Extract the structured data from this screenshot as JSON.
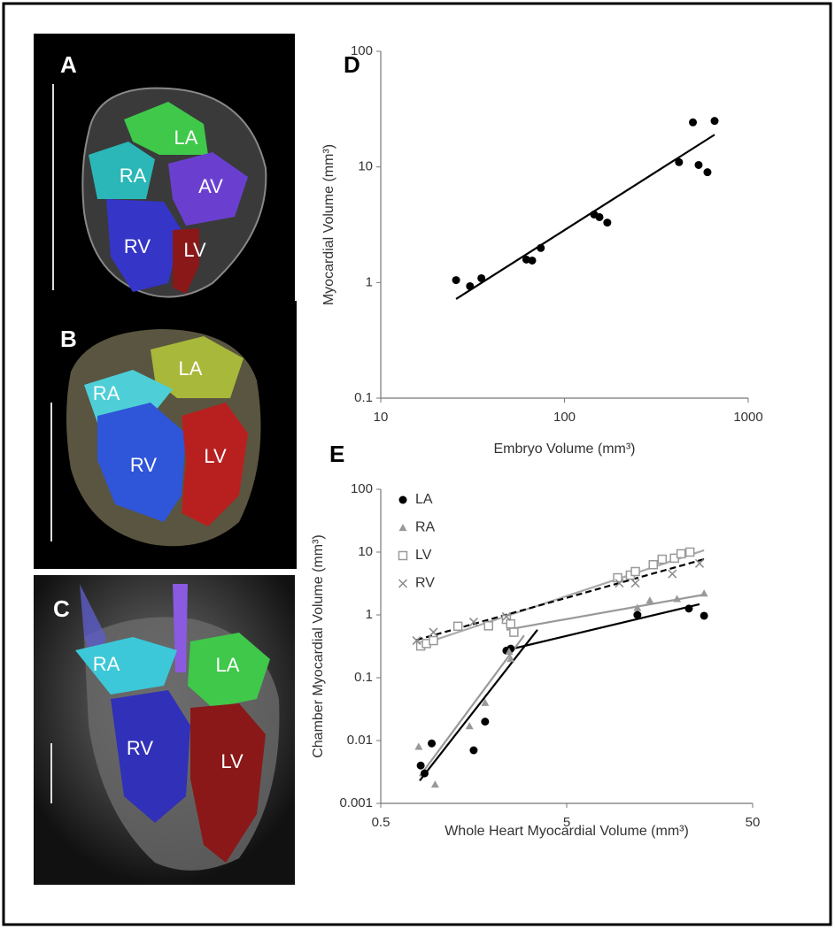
{
  "images": [
    {
      "panel": "A",
      "labels": [
        "LA",
        "RA",
        "AV",
        "RV",
        "LV"
      ]
    },
    {
      "panel": "B",
      "labels": [
        "LA",
        "RA",
        "RV",
        "LV"
      ]
    },
    {
      "panel": "C",
      "labels": [
        "RA",
        "LA",
        "RV",
        "LV"
      ]
    }
  ],
  "chart_data": [
    {
      "type": "scatter",
      "panel": "D",
      "x_label": "Embryo Volume (mm³)",
      "y_label": "Myocardial Volume (mm³)",
      "log_x": true,
      "log_y": true,
      "xlim": [
        10,
        1000
      ],
      "xticks": [
        10,
        100,
        1000
      ],
      "ylim": [
        0.1,
        100
      ],
      "yticks": [
        0.1,
        1,
        10,
        100
      ],
      "series": [
        {
          "color": "#000000",
          "marker": "circle",
          "x": [
            25.7,
            30.6,
            35.3,
            62,
            66.7,
            74.3,
            145,
            155,
            171,
            420,
            537,
            600,
            500,
            656
          ],
          "values": [
            1.05,
            0.93,
            1.09,
            1.58,
            1.55,
            1.99,
            3.88,
            3.68,
            3.3,
            11,
            10.4,
            9,
            24.3,
            25
          ]
        }
      ],
      "trendlines": [
        {
          "color": "#000000",
          "dash": false,
          "x": [
            25.7,
            656
          ],
          "y": [
            0.72,
            19
          ]
        }
      ]
    },
    {
      "type": "scatter",
      "panel": "E",
      "x_label": "Whole Heart Myocardial Volume (mm³)",
      "y_label": "Chamber Myocardial Volume (mm³)",
      "log_x": true,
      "log_y": true,
      "legend": "upper left",
      "xlim": [
        0.5,
        50
      ],
      "xticks": [
        0.5,
        5,
        50
      ],
      "ylim": [
        0.001,
        100
      ],
      "yticks": [
        0.001,
        0.01,
        0.1,
        1,
        10,
        100
      ],
      "series": [
        {
          "name": "LA",
          "color": "#000000",
          "marker": "circle",
          "x": [
            0.82,
            0.86,
            0.94,
            1.58,
            1.82,
            2.37,
            2.5,
            12,
            22.7,
            27.4
          ],
          "values": [
            0.004,
            0.003,
            0.009,
            0.007,
            0.02,
            0.27,
            0.29,
            1.0,
            1.26,
            0.97
          ]
        },
        {
          "name": "RA",
          "color": "#999999",
          "marker": "triangle",
          "x": [
            0.8,
            0.98,
            1.5,
            1.82,
            2.45,
            2.5,
            12,
            14,
            19.6,
            27.4
          ],
          "values": [
            0.008,
            0.002,
            0.017,
            0.04,
            0.26,
            0.2,
            1.3,
            1.7,
            1.8,
            2.2
          ]
        },
        {
          "name": "LV",
          "color": "#999999",
          "marker": "square",
          "x": [
            0.82,
            0.88,
            0.96,
            1.3,
            1.9,
            2.37,
            2.5,
            2.6,
            9.4,
            11,
            11.7,
            14.6,
            16.3,
            19,
            20.6,
            23
          ],
          "values": [
            0.32,
            0.35,
            0.39,
            0.66,
            0.67,
            0.85,
            0.72,
            0.53,
            3.9,
            4.3,
            4.9,
            6.3,
            7.7,
            8,
            9.4,
            10
          ]
        },
        {
          "name": "RV",
          "color": "#888888",
          "marker": "x",
          "x": [
            0.78,
            0.96,
            1.58,
            2.37,
            9.6,
            11.7,
            18.5,
            25.9
          ],
          "values": [
            0.39,
            0.53,
            0.77,
            0.94,
            3.2,
            3.2,
            4.5,
            6.6
          ]
        }
      ],
      "trendlines": [
        {
          "color": "#000000",
          "dash": false,
          "x": [
            0.81,
            3.48
          ],
          "y": [
            0.0023,
            0.58
          ]
        },
        {
          "color": "#000000",
          "dash": false,
          "x": [
            2.32,
            25.9
          ],
          "y": [
            0.27,
            1.48
          ]
        },
        {
          "color": "#999999",
          "dash": false,
          "x": [
            0.81,
            2.95
          ],
          "y": [
            0.0027,
            0.47
          ]
        },
        {
          "color": "#999999",
          "dash": false,
          "x": [
            2.37,
            27.4
          ],
          "y": [
            0.58,
            2.1
          ]
        },
        {
          "color": "#aaaaaa",
          "dash": false,
          "x": [
            0.78,
            27.4
          ],
          "y": [
            0.32,
            10.7
          ]
        },
        {
          "color": "#000000",
          "dash": true,
          "x": [
            0.78,
            27.4
          ],
          "y": [
            0.4,
            7.7
          ]
        }
      ]
    }
  ]
}
